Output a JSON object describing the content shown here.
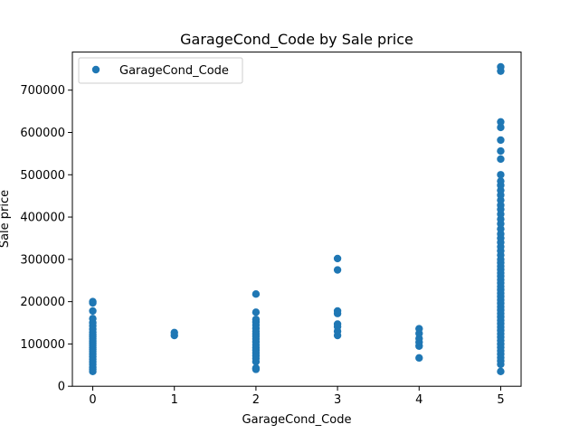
{
  "chart_data": {
    "type": "scatter",
    "title": "GarageCond_Code by Sale price",
    "xlabel": "GarageCond_Code",
    "ylabel": "Sale price",
    "xlim": [
      -0.25,
      5.25
    ],
    "ylim": [
      0,
      790000
    ],
    "xticks": [
      0,
      1,
      2,
      3,
      4,
      5
    ],
    "yticks": [
      0,
      100000,
      200000,
      300000,
      400000,
      500000,
      600000,
      700000
    ],
    "grid": false,
    "legend_position": "upper-left",
    "marker_color": "#1f77b4",
    "series": [
      {
        "name": "GarageCond_Code",
        "points": [
          [
            0,
            35000
          ],
          [
            0,
            40000
          ],
          [
            0,
            45000
          ],
          [
            0,
            52000
          ],
          [
            0,
            58000
          ],
          [
            0,
            64000
          ],
          [
            0,
            70000
          ],
          [
            0,
            76000
          ],
          [
            0,
            82000
          ],
          [
            0,
            87000
          ],
          [
            0,
            92000
          ],
          [
            0,
            97000
          ],
          [
            0,
            102000
          ],
          [
            0,
            107000
          ],
          [
            0,
            112000
          ],
          [
            0,
            117000
          ],
          [
            0,
            122000
          ],
          [
            0,
            128000
          ],
          [
            0,
            135000
          ],
          [
            0,
            143000
          ],
          [
            0,
            150000
          ],
          [
            0,
            160000
          ],
          [
            0,
            178000
          ],
          [
            0,
            197000
          ],
          [
            0,
            200000
          ],
          [
            1,
            120000
          ],
          [
            1,
            127000
          ],
          [
            2,
            40000
          ],
          [
            2,
            43000
          ],
          [
            2,
            58000
          ],
          [
            2,
            66000
          ],
          [
            2,
            72000
          ],
          [
            2,
            79000
          ],
          [
            2,
            85000
          ],
          [
            2,
            91000
          ],
          [
            2,
            98000
          ],
          [
            2,
            105000
          ],
          [
            2,
            112000
          ],
          [
            2,
            118000
          ],
          [
            2,
            124000
          ],
          [
            2,
            130000
          ],
          [
            2,
            137000
          ],
          [
            2,
            145000
          ],
          [
            2,
            152000
          ],
          [
            2,
            158000
          ],
          [
            2,
            175000
          ],
          [
            2,
            218000
          ],
          [
            3,
            120000
          ],
          [
            3,
            130000
          ],
          [
            3,
            141000
          ],
          [
            3,
            147000
          ],
          [
            3,
            172000
          ],
          [
            3,
            178000
          ],
          [
            3,
            275000
          ],
          [
            3,
            302000
          ],
          [
            4,
            67000
          ],
          [
            4,
            95000
          ],
          [
            4,
            104000
          ],
          [
            4,
            113000
          ],
          [
            4,
            125000
          ],
          [
            4,
            136000
          ],
          [
            5,
            35000
          ],
          [
            5,
            52000
          ],
          [
            5,
            60000
          ],
          [
            5,
            68000
          ],
          [
            5,
            76000
          ],
          [
            5,
            84000
          ],
          [
            5,
            92000
          ],
          [
            5,
            100000
          ],
          [
            5,
            108000
          ],
          [
            5,
            116000
          ],
          [
            5,
            124000
          ],
          [
            5,
            132000
          ],
          [
            5,
            140000
          ],
          [
            5,
            148000
          ],
          [
            5,
            156000
          ],
          [
            5,
            164000
          ],
          [
            5,
            172000
          ],
          [
            5,
            180000
          ],
          [
            5,
            188000
          ],
          [
            5,
            196000
          ],
          [
            5,
            204000
          ],
          [
            5,
            212000
          ],
          [
            5,
            220000
          ],
          [
            5,
            228000
          ],
          [
            5,
            236000
          ],
          [
            5,
            244000
          ],
          [
            5,
            252000
          ],
          [
            5,
            260000
          ],
          [
            5,
            268000
          ],
          [
            5,
            276000
          ],
          [
            5,
            284000
          ],
          [
            5,
            292000
          ],
          [
            5,
            300000
          ],
          [
            5,
            310000
          ],
          [
            5,
            320000
          ],
          [
            5,
            330000
          ],
          [
            5,
            340000
          ],
          [
            5,
            350000
          ],
          [
            5,
            360000
          ],
          [
            5,
            372000
          ],
          [
            5,
            384000
          ],
          [
            5,
            395000
          ],
          [
            5,
            407000
          ],
          [
            5,
            418000
          ],
          [
            5,
            428000
          ],
          [
            5,
            440000
          ],
          [
            5,
            452000
          ],
          [
            5,
            463000
          ],
          [
            5,
            475000
          ],
          [
            5,
            485000
          ],
          [
            5,
            500000
          ],
          [
            5,
            537000
          ],
          [
            5,
            556000
          ],
          [
            5,
            582000
          ],
          [
            5,
            612000
          ],
          [
            5,
            625000
          ],
          [
            5,
            745000
          ],
          [
            5,
            755000
          ]
        ]
      }
    ]
  }
}
